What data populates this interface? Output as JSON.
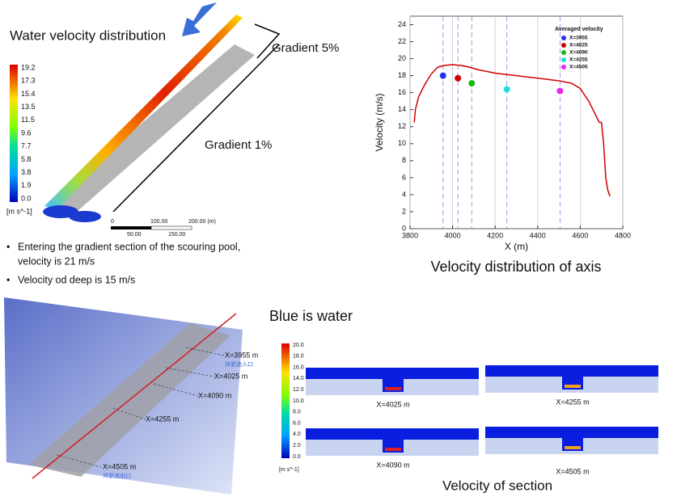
{
  "top_left": {
    "title": "Water velocity distribution",
    "gradient_upper": "Gradient 5%",
    "gradient_lower": "Gradient 1%",
    "colorbar": [
      "19.2",
      "17.3",
      "15.4",
      "13.5",
      "11.5",
      "9.6",
      "7.7",
      "5.8",
      "3.8",
      "1.9",
      "0.0"
    ],
    "unit": "[m s^-1]",
    "scale_top": [
      "0",
      "100.00",
      "200.00 (m)"
    ],
    "scale_bottom": [
      "50.00",
      "150.00"
    ]
  },
  "bullets": [
    "Entering the gradient section of the scouring pool,",
    "velocity is 21 m/s",
    "Velocity od deep is 15 m/s"
  ],
  "chart_data": {
    "type": "line",
    "xlabel": "X (m)",
    "ylabel": "Velocity (m/s)",
    "caption": "Velocity distribution of axis",
    "legend_title": "Averaged velocity",
    "color": "#d00000",
    "grid": true,
    "x": [
      3820,
      3825,
      3840,
      3870,
      3900,
      3930,
      3960,
      4000,
      4040,
      4080,
      4120,
      4200,
      4300,
      4400,
      4500,
      4560,
      4600,
      4640,
      4670,
      4690,
      4700,
      4710,
      4720,
      4730,
      4740
    ],
    "values": [
      12.5,
      14,
      15.5,
      17,
      18.2,
      19,
      19.2,
      19.3,
      19.2,
      19,
      18.7,
      18.3,
      18,
      17.7,
      17.4,
      17.1,
      16.5,
      15,
      13.5,
      12.5,
      12.5,
      10,
      6,
      4.5,
      3.8
    ],
    "points": [
      {
        "name": "X=3955",
        "color": "#2233ee",
        "x": 3955,
        "y": 18
      },
      {
        "name": "X=4025",
        "color": "#cc0000",
        "x": 4025,
        "y": 17.7
      },
      {
        "name": "X=4090",
        "color": "#11bb11",
        "x": 4090,
        "y": 17.1
      },
      {
        "name": "X=4255",
        "color": "#22dddd",
        "x": 4255,
        "y": 16.4
      },
      {
        "name": "X=4505",
        "color": "#ee22ee",
        "x": 4505,
        "y": 16.2
      }
    ],
    "xlim": [
      3800,
      4800
    ],
    "ylim": [
      0,
      25
    ],
    "xticks": [
      3800,
      4000,
      4200,
      4400,
      4600,
      4800
    ],
    "yticks": [
      0,
      2,
      4,
      6,
      8,
      10,
      12,
      14,
      16,
      18,
      20,
      22,
      24
    ]
  },
  "bottom_left": {
    "labels": [
      "X=3955 m",
      "X=4025 m",
      "X=4090 m",
      "X=4255 m",
      "X=4505 m"
    ],
    "inlet": "沖淤池入口",
    "outlet": "沖淤池出口"
  },
  "bottom_right": {
    "title": "Blue is water",
    "colorbar": [
      "20.0",
      "18.0",
      "16.0",
      "14.0",
      "12.0",
      "10.0",
      "8.0",
      "6.0",
      "4.0",
      "2.0",
      "0.0"
    ],
    "unit": "[m s^-1]",
    "sections": [
      "X=4025 m",
      "X=4255 m",
      "X=4090 m",
      "X=4505 m"
    ],
    "caption": "Velocity of section"
  }
}
